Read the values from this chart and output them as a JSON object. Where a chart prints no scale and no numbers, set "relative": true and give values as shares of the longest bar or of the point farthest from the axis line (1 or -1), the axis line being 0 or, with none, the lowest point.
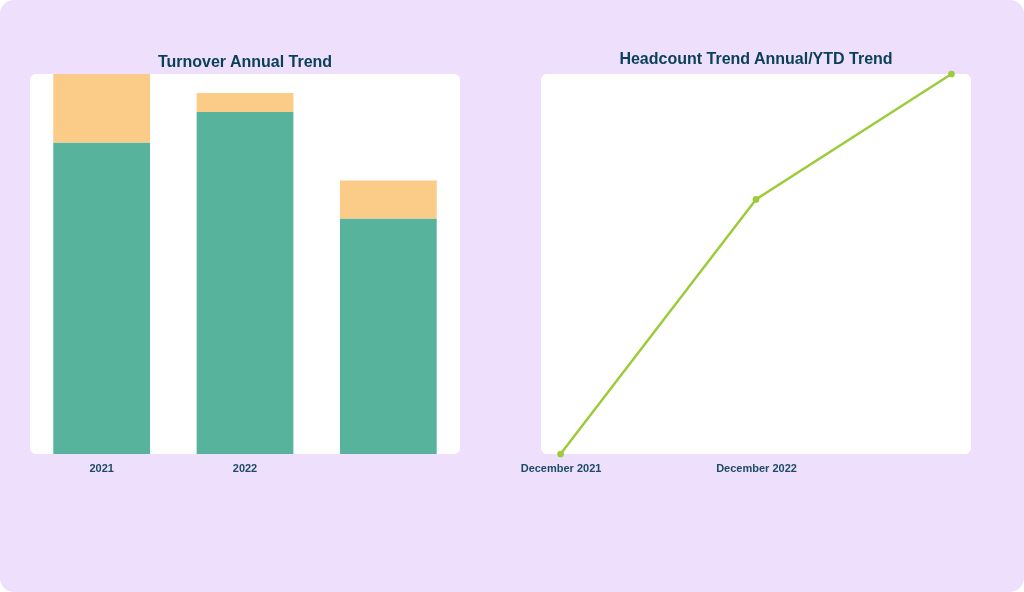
{
  "chart_data": [
    {
      "type": "bar",
      "title": "Turnover Annual Trend",
      "categories": [
        "2021",
        "2022",
        null
      ],
      "stacked": true,
      "relative": true,
      "grid": false,
      "series": [
        {
          "color": "#57b39c",
          "values": [
            0.82,
            0.9,
            0.62
          ]
        },
        {
          "color": "#fbcc88",
          "values": [
            0.18,
            0.05,
            0.1
          ]
        }
      ]
    },
    {
      "type": "line",
      "title": "Headcount Trend Annual/YTD Trend",
      "categories": [
        "December 2021",
        "December 2022",
        null
      ],
      "relative": true,
      "grid": false,
      "marker": "circle",
      "line_style": "solid",
      "series": [
        {
          "color": "#9ccc3c",
          "values": [
            0,
            0.67,
            1
          ]
        }
      ]
    }
  ]
}
